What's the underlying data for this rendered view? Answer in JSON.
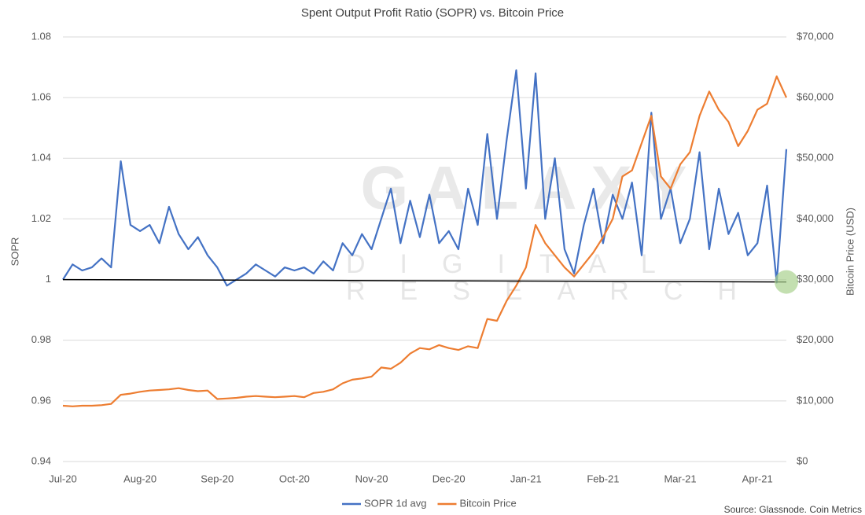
{
  "chart_data": {
    "type": "line",
    "title": "Spent Output Profit Ratio (SOPR) vs. Bitcoin Price",
    "y_label": "SOPR",
    "y2_label": "Bitcoin Price (USD)",
    "source": "Source: Glassnode. Coin Metrics",
    "watermark": [
      "GALAXY",
      "DIGITAL",
      "RESEARCH"
    ],
    "grid": true,
    "legend": "bottom",
    "categories": [
      "Jul-20",
      null,
      null,
      null,
      null,
      null,
      null,
      null,
      "Aug-20",
      null,
      null,
      null,
      null,
      null,
      null,
      null,
      "Sep-20",
      null,
      null,
      null,
      null,
      null,
      null,
      null,
      "Oct-20",
      null,
      null,
      null,
      null,
      null,
      null,
      null,
      "Nov-20",
      null,
      null,
      null,
      null,
      null,
      null,
      null,
      "Dec-20",
      null,
      null,
      null,
      null,
      null,
      null,
      null,
      "Jan-21",
      null,
      null,
      null,
      null,
      null,
      null,
      null,
      "Feb-21",
      null,
      null,
      null,
      null,
      null,
      null,
      null,
      "Mar-21",
      null,
      null,
      null,
      null,
      null,
      null,
      null,
      "Apr-21",
      null,
      null,
      null
    ],
    "ylim": [
      0.94,
      1.08
    ],
    "yticks": [
      0.94,
      0.96,
      0.98,
      1,
      1.02,
      1.04,
      1.06,
      1.08
    ],
    "y2lim": [
      0,
      70000
    ],
    "y2ticks": [
      {
        "value": 0,
        "label": "$0"
      },
      {
        "value": 10000,
        "label": "$10,000"
      },
      {
        "value": 20000,
        "label": "$20,000"
      },
      {
        "value": 30000,
        "label": "$30,000"
      },
      {
        "value": 40000,
        "label": "$40,000"
      },
      {
        "value": 50000,
        "label": "$50,000"
      },
      {
        "value": 60000,
        "label": "$60,000"
      },
      {
        "value": 70000,
        "label": "$70,000"
      }
    ],
    "series": [
      {
        "name": "SOPR 1d avg",
        "color": "#4472c4",
        "values": [
          1.0,
          1.005,
          1.003,
          1.004,
          1.007,
          1.004,
          1.039,
          1.018,
          1.016,
          1.018,
          1.012,
          1.024,
          1.015,
          1.01,
          1.014,
          1.008,
          1.004,
          0.998,
          1.0,
          1.002,
          1.005,
          1.003,
          1.001,
          1.004,
          1.003,
          1.004,
          1.002,
          1.006,
          1.003,
          1.012,
          1.008,
          1.015,
          1.01,
          1.02,
          1.03,
          1.012,
          1.026,
          1.014,
          1.028,
          1.012,
          1.016,
          1.01,
          1.03,
          1.018,
          1.048,
          1.02,
          1.046,
          1.069,
          1.03,
          1.068,
          1.02,
          1.04,
          1.01,
          1.002,
          1.018,
          1.03,
          1.012,
          1.028,
          1.02,
          1.032,
          1.008,
          1.055,
          1.02,
          1.03,
          1.012,
          1.02,
          1.042,
          1.01,
          1.03,
          1.015,
          1.022,
          1.008,
          1.012,
          1.031,
          0.999,
          1.043
        ]
      },
      {
        "name": "Bitcoin Price",
        "color": "#ed7d31",
        "axis": "y2",
        "values": [
          9200,
          9100,
          9200,
          9200,
          9300,
          9500,
          11000,
          11200,
          11500,
          11700,
          11800,
          11900,
          12100,
          11800,
          11600,
          11700,
          10300,
          10400,
          10500,
          10700,
          10800,
          10700,
          10600,
          10700,
          10800,
          10600,
          11300,
          11500,
          11900,
          12900,
          13500,
          13700,
          14000,
          15500,
          15300,
          16300,
          17800,
          18700,
          18500,
          19200,
          18700,
          18400,
          19000,
          18700,
          23500,
          23200,
          26500,
          29000,
          32000,
          39000,
          36000,
          34000,
          32000,
          30500,
          32500,
          34500,
          37000,
          40000,
          47000,
          48000,
          52500,
          57000,
          47000,
          45000,
          49000,
          51000,
          57000,
          61000,
          58000,
          56000,
          52000,
          54500,
          58000,
          59000,
          63500,
          60000
        ]
      }
    ]
  }
}
